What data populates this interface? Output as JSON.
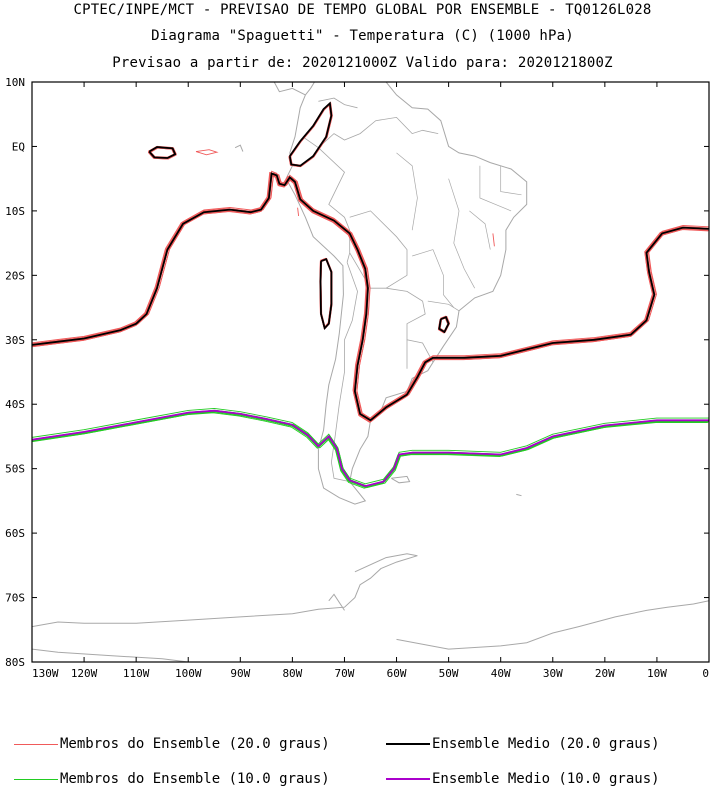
{
  "title": {
    "line1": "CPTEC/INPE/MCT - PREVISAO DE TEMPO GLOBAL POR ENSEMBLE - TQ0126L028",
    "line2": "Diagrama \"Spaguetti\" - Temperatura (C) (1000 hPa)",
    "line3": "Previsao a partir de: 2020121000Z  Valido para: 2020121800Z"
  },
  "axes": {
    "lat_labels": [
      "10N",
      "EQ",
      "10S",
      "20S",
      "30S",
      "40S",
      "50S",
      "60S",
      "70S",
      "80S"
    ],
    "lon_labels": [
      "130W",
      "120W",
      "110W",
      "100W",
      "90W",
      "80W",
      "70W",
      "60W",
      "50W",
      "40W",
      "30W",
      "20W",
      "10W",
      "0"
    ]
  },
  "map_extent": {
    "lon_min": -130,
    "lon_max": 0,
    "lat_min": -80,
    "lat_max": 10
  },
  "colors": {
    "member20": "#f05a5a",
    "mean20": "#000000",
    "member10": "#22cc22",
    "mean10": "#aa00cc",
    "coast": "#a8a8a8"
  },
  "legend": {
    "member20": "Membros do Ensemble (20.0 graus)",
    "mean20": "Ensemble Medio (20.0 graus)",
    "member10": "Membros do Ensemble (10.0 graus)",
    "mean10": "Ensemble Medio (10.0 graus)"
  },
  "contours": {
    "mean20_main": [
      [
        -130,
        -30.8
      ],
      [
        -125,
        -30.3
      ],
      [
        -120,
        -29.8
      ],
      [
        -113,
        -28.5
      ],
      [
        -110,
        -27.5
      ],
      [
        -108,
        -26
      ],
      [
        -106,
        -22
      ],
      [
        -104,
        -16
      ],
      [
        -101,
        -12
      ],
      [
        -97,
        -10.2
      ],
      [
        -92,
        -9.8
      ],
      [
        -88,
        -10.2
      ],
      [
        -86,
        -9.8
      ],
      [
        -84.5,
        -8
      ],
      [
        -84,
        -4.2
      ],
      [
        -83,
        -4.5
      ],
      [
        -82.5,
        -5.8
      ],
      [
        -81.5,
        -6
      ],
      [
        -80.5,
        -4.8
      ],
      [
        -79.5,
        -5.5
      ],
      [
        -78.5,
        -8.2
      ],
      [
        -76,
        -10
      ],
      [
        -72,
        -11.5
      ],
      [
        -69,
        -13.5
      ],
      [
        -67.5,
        -16
      ],
      [
        -66,
        -19
      ],
      [
        -65.5,
        -22
      ],
      [
        -65.8,
        -26
      ],
      [
        -66.5,
        -30
      ],
      [
        -67.5,
        -34
      ],
      [
        -68,
        -38
      ],
      [
        -67,
        -41.5
      ],
      [
        -65,
        -42.5
      ],
      [
        -62,
        -40.5
      ],
      [
        -58,
        -38.5
      ],
      [
        -56,
        -35.8
      ],
      [
        -54.5,
        -33.5
      ],
      [
        -53,
        -32.8
      ],
      [
        -47,
        -32.8
      ],
      [
        -40,
        -32.5
      ],
      [
        -35,
        -31.5
      ],
      [
        -30,
        -30.5
      ],
      [
        -22,
        -30
      ],
      [
        -15,
        -29.2
      ],
      [
        -12,
        -27
      ],
      [
        -10.5,
        -23
      ],
      [
        -11.5,
        -19.5
      ],
      [
        -12,
        -16.5
      ],
      [
        -9,
        -13.5
      ],
      [
        -5,
        -12.6
      ],
      [
        0,
        -12.8
      ]
    ],
    "mean20_galapagos": [
      [
        -107.5,
        -0.8
      ],
      [
        -106,
        -0.1
      ],
      [
        -103,
        -0.3
      ],
      [
        -102.5,
        -1.2
      ],
      [
        -104,
        -1.8
      ],
      [
        -106.5,
        -1.7
      ],
      [
        -107.5,
        -0.8
      ]
    ],
    "mean20_peru": [
      [
        -80.5,
        -1.5
      ],
      [
        -78.5,
        0.8
      ],
      [
        -76,
        3.2
      ],
      [
        -74,
        5.8
      ],
      [
        -72.8,
        6.7
      ],
      [
        -72.5,
        4.8
      ],
      [
        -73.5,
        1.5
      ],
      [
        -76,
        -1.5
      ],
      [
        -78.5,
        -3
      ],
      [
        -80.2,
        -2.8
      ],
      [
        -80.5,
        -1.5
      ]
    ],
    "mean20_chile": [
      [
        -74.5,
        -17.8
      ],
      [
        -73.5,
        -17.5
      ],
      [
        -72.5,
        -19.5
      ],
      [
        -72.5,
        -24.5
      ],
      [
        -73,
        -27.5
      ],
      [
        -73.8,
        -28.2
      ],
      [
        -74.5,
        -26
      ],
      [
        -74.6,
        -21
      ],
      [
        -74.5,
        -17.8
      ]
    ],
    "mean20_uruguay": [
      [
        -51.5,
        -26.8
      ],
      [
        -50.5,
        -26.5
      ],
      [
        -50,
        -27.5
      ],
      [
        -50.8,
        -28.8
      ],
      [
        -51.8,
        -28.3
      ],
      [
        -51.5,
        -26.8
      ]
    ],
    "mean10_main": [
      [
        -130,
        -45.5
      ],
      [
        -120,
        -44.3
      ],
      [
        -110,
        -42.8
      ],
      [
        -100,
        -41.3
      ],
      [
        -95,
        -41
      ],
      [
        -90,
        -41.5
      ],
      [
        -85,
        -42.3
      ],
      [
        -80,
        -43.2
      ],
      [
        -77,
        -44.8
      ],
      [
        -75,
        -46.5
      ],
      [
        -73,
        -45
      ],
      [
        -71.5,
        -46.8
      ],
      [
        -70.5,
        -50
      ],
      [
        -69,
        -51.8
      ],
      [
        -66,
        -52.7
      ],
      [
        -62.5,
        -52
      ],
      [
        -60.5,
        -50
      ],
      [
        -59.5,
        -47.8
      ],
      [
        -57,
        -47.5
      ],
      [
        -50,
        -47.5
      ],
      [
        -40,
        -47.8
      ],
      [
        -35,
        -46.8
      ],
      [
        -30,
        -45
      ],
      [
        -20,
        -43.3
      ],
      [
        -10,
        -42.5
      ],
      [
        0,
        -42.5
      ]
    ],
    "coast": [
      [
        [
          -77.5,
          8
        ],
        [
          -78.5,
          6
        ],
        [
          -79.5,
          1.5
        ],
        [
          -80.5,
          -1
        ],
        [
          -80,
          -3
        ],
        [
          -81.2,
          -5
        ],
        [
          -79.5,
          -7.5
        ],
        [
          -77.5,
          -11
        ],
        [
          -76,
          -14
        ],
        [
          -72,
          -17
        ],
        [
          -70.3,
          -18.5
        ],
        [
          -70.2,
          -23
        ],
        [
          -71,
          -29
        ],
        [
          -71.7,
          -33
        ],
        [
          -73,
          -37
        ],
        [
          -73.5,
          -40
        ],
        [
          -74,
          -44
        ],
        [
          -75,
          -47
        ],
        [
          -75,
          -50
        ],
        [
          -74,
          -53
        ],
        [
          -71,
          -54.5
        ],
        [
          -68,
          -55.5
        ],
        [
          -66,
          -55
        ],
        [
          -67.5,
          -53.5
        ],
        [
          -69,
          -52
        ],
        [
          -68.5,
          -50
        ],
        [
          -67,
          -47
        ],
        [
          -65.5,
          -45
        ],
        [
          -65,
          -42.5
        ],
        [
          -63,
          -41
        ],
        [
          -62,
          -39
        ],
        [
          -58,
          -38
        ],
        [
          -57,
          -36
        ],
        [
          -54,
          -34.8
        ],
        [
          -53,
          -33.5
        ],
        [
          -51,
          -31
        ],
        [
          -48.5,
          -28
        ],
        [
          -48,
          -25.5
        ],
        [
          -45,
          -23.5
        ],
        [
          -41.5,
          -22.5
        ],
        [
          -40,
          -20
        ],
        [
          -39,
          -16
        ],
        [
          -39,
          -13
        ],
        [
          -37.5,
          -11
        ],
        [
          -35,
          -9
        ],
        [
          -35,
          -5.5
        ],
        [
          -38,
          -3.5
        ],
        [
          -42,
          -2.5
        ],
        [
          -45,
          -1.5
        ],
        [
          -48,
          -1
        ],
        [
          -50,
          0
        ],
        [
          -51.5,
          4
        ],
        [
          -54,
          5.8
        ],
        [
          -57,
          6
        ],
        [
          -60,
          8
        ],
        [
          -62,
          10
        ]
      ],
      [
        [
          -62,
          10
        ],
        [
          -64,
          10.2
        ],
        [
          -68,
          10.5
        ],
        [
          -72,
          11.5
        ],
        [
          -75,
          11
        ],
        [
          -76.5,
          9
        ],
        [
          -77.5,
          8
        ]
      ],
      [
        [
          -77.5,
          8
        ],
        [
          -80,
          9
        ],
        [
          -82.5,
          8.5
        ],
        [
          -83.5,
          10
        ],
        [
          -84.5,
          11
        ],
        [
          -85.5,
          11.5
        ]
      ],
      [
        [
          -68,
          -66
        ],
        [
          -62,
          -63.8
        ],
        [
          -58,
          -63.2
        ],
        [
          -56,
          -63.5
        ],
        [
          -60,
          -64.5
        ],
        [
          -63,
          -65.5
        ],
        [
          -65,
          -67
        ],
        [
          -67,
          -68
        ],
        [
          -68,
          -70
        ],
        [
          -70,
          -71.5
        ],
        [
          -75,
          -71.8
        ],
        [
          -80,
          -72.5
        ],
        [
          -90,
          -73
        ],
        [
          -100,
          -73.5
        ],
        [
          -110,
          -74
        ],
        [
          -120,
          -74
        ],
        [
          -125,
          -73.8
        ],
        [
          -130,
          -74.5
        ]
      ],
      [
        [
          -70,
          -72
        ],
        [
          -72,
          -69.5
        ],
        [
          -73,
          -70.5
        ]
      ],
      [
        [
          -60,
          -76.5
        ],
        [
          -50,
          -78
        ],
        [
          -40,
          -77.5
        ],
        [
          -35,
          -77
        ],
        [
          -30,
          -75.5
        ],
        [
          -25,
          -74.5
        ],
        [
          -18,
          -73
        ],
        [
          -12,
          -72
        ],
        [
          -8,
          -71.5
        ],
        [
          -3,
          -71
        ],
        [
          0,
          -70.5
        ]
      ],
      [
        [
          -61,
          -51.5
        ],
        [
          -58,
          -51.2
        ],
        [
          -57.5,
          -52
        ],
        [
          -59.5,
          -52.2
        ],
        [
          -61,
          -51.5
        ]
      ],
      [
        [
          -37,
          -54
        ],
        [
          -36,
          -54.2
        ]
      ],
      [
        [
          -130,
          -78
        ],
        [
          -125,
          -78.5
        ],
        [
          -115,
          -79
        ],
        [
          -105,
          -79.5
        ],
        [
          -100,
          -80
        ]
      ],
      [
        [
          -91,
          -0.2
        ],
        [
          -90,
          0.2
        ],
        [
          -89.5,
          -0.8
        ]
      ]
    ],
    "borders": [
      [
        [
          -75,
          -0.2
        ],
        [
          -72,
          2
        ],
        [
          -70,
          1
        ],
        [
          -67,
          2
        ],
        [
          -64,
          4
        ],
        [
          -60,
          4.5
        ],
        [
          -57,
          2
        ],
        [
          -55,
          2.5
        ],
        [
          -52,
          2
        ]
      ],
      [
        [
          -75,
          -0.2
        ],
        [
          -70,
          -4
        ],
        [
          -73,
          -9
        ],
        [
          -70,
          -11
        ],
        [
          -69,
          -13
        ],
        [
          -69,
          -16.5
        ],
        [
          -69.5,
          -18
        ]
      ],
      [
        [
          -69,
          -16.5
        ],
        [
          -65,
          -22
        ],
        [
          -62,
          -22
        ],
        [
          -58,
          -20
        ],
        [
          -58,
          -16
        ],
        [
          -60,
          -14
        ],
        [
          -65,
          -10
        ],
        [
          -69,
          -11
        ]
      ],
      [
        [
          -62,
          -22
        ],
        [
          -58,
          -22.5
        ],
        [
          -55,
          -24
        ],
        [
          -54.5,
          -26
        ],
        [
          -58,
          -27.5
        ],
        [
          -58,
          -30
        ],
        [
          -55,
          -30.5
        ],
        [
          -53,
          -33.5
        ]
      ],
      [
        [
          -58,
          -30
        ],
        [
          -58,
          -34.5
        ]
      ],
      [
        [
          -69.5,
          -18
        ],
        [
          -67.5,
          -22.5
        ],
        [
          -68.5,
          -27
        ],
        [
          -70,
          -30
        ],
        [
          -70,
          -35
        ],
        [
          -71,
          -40
        ],
        [
          -71.8,
          -45
        ],
        [
          -72.5,
          -49
        ],
        [
          -72,
          -51.5
        ],
        [
          -69,
          -52
        ]
      ],
      [
        [
          -78,
          1.5
        ],
        [
          -75,
          -0.2
        ]
      ],
      [
        [
          -75,
          7
        ],
        [
          -72,
          7.5
        ],
        [
          -70,
          6.5
        ],
        [
          -67.5,
          6
        ]
      ]
    ],
    "brazil_states": [
      [
        [
          -60,
          -1
        ],
        [
          -57,
          -3
        ],
        [
          -56,
          -8
        ],
        [
          -57,
          -13
        ]
      ],
      [
        [
          -50,
          -5
        ],
        [
          -48,
          -10
        ],
        [
          -49,
          -15
        ],
        [
          -47,
          -19
        ],
        [
          -45,
          -22
        ]
      ],
      [
        [
          -46,
          -10
        ],
        [
          -43,
          -12
        ],
        [
          -42,
          -16
        ]
      ],
      [
        [
          -53,
          -16
        ],
        [
          -51,
          -20
        ],
        [
          -51,
          -23
        ],
        [
          -49,
          -25
        ]
      ],
      [
        [
          -54,
          -24
        ],
        [
          -50,
          -24.5
        ],
        [
          -48,
          -25.5
        ]
      ],
      [
        [
          -57,
          -17
        ],
        [
          -53,
          -16
        ]
      ],
      [
        [
          -44,
          -3
        ],
        [
          -44,
          -8
        ],
        [
          -41,
          -9
        ],
        [
          -38,
          -10
        ]
      ],
      [
        [
          -40,
          -3
        ],
        [
          -40,
          -7
        ],
        [
          -36,
          -7.5
        ]
      ]
    ]
  }
}
